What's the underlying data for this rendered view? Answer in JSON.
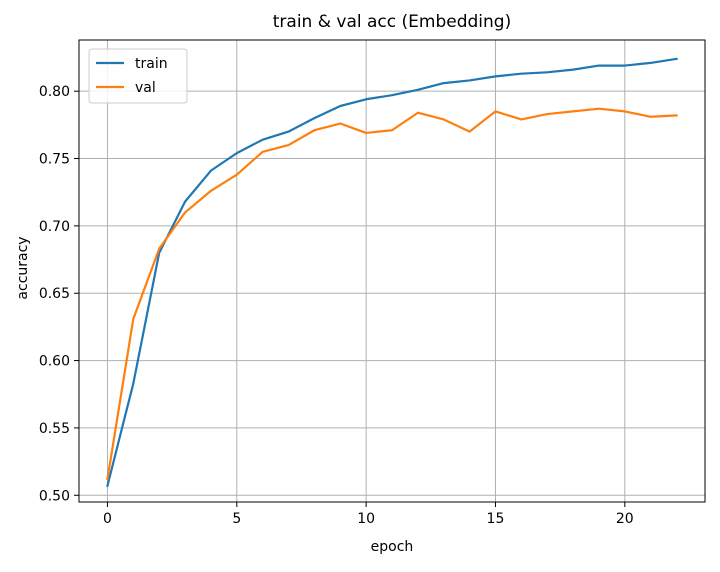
{
  "chart_data": {
    "type": "line",
    "title": "train & val acc (Embedding)",
    "xlabel": "epoch",
    "ylabel": "accuracy",
    "xlim": [
      -1.1,
      23.1
    ],
    "ylim": [
      0.495,
      0.838
    ],
    "xticks": [
      0,
      5,
      10,
      15,
      20
    ],
    "yticks": [
      0.5,
      0.55,
      0.6,
      0.65,
      0.7,
      0.75,
      0.8
    ],
    "ytick_labels": [
      "0.50",
      "0.55",
      "0.60",
      "0.65",
      "0.70",
      "0.75",
      "0.80"
    ],
    "grid": true,
    "legend_position": "top-left",
    "x": [
      0,
      1,
      2,
      3,
      4,
      5,
      6,
      7,
      8,
      9,
      10,
      11,
      12,
      13,
      14,
      15,
      16,
      17,
      18,
      19,
      20,
      21,
      22
    ],
    "series": [
      {
        "name": "train",
        "color": "#1f77b4",
        "values": [
          0.507,
          0.583,
          0.68,
          0.718,
          0.741,
          0.754,
          0.764,
          0.77,
          0.78,
          0.789,
          0.794,
          0.797,
          0.801,
          0.806,
          0.808,
          0.811,
          0.813,
          0.814,
          0.816,
          0.819,
          0.819,
          0.821,
          0.824
        ]
      },
      {
        "name": "val",
        "color": "#ff7f0e",
        "values": [
          0.512,
          0.631,
          0.683,
          0.71,
          0.726,
          0.738,
          0.755,
          0.76,
          0.771,
          0.776,
          0.769,
          0.771,
          0.784,
          0.779,
          0.77,
          0.785,
          0.779,
          0.783,
          0.785,
          0.787,
          0.785,
          0.781,
          0.782
        ]
      }
    ]
  }
}
